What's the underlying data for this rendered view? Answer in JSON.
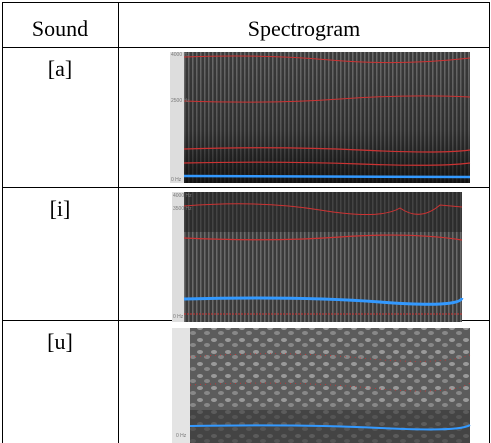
{
  "table": {
    "header": [
      "Sound",
      "Spectrogram"
    ],
    "rows": [
      {
        "sound": "[a]",
        "axis": [
          "4000 Hz",
          "2500 Hz",
          "0 Hz"
        ]
      },
      {
        "sound": "[i]",
        "axis": [
          "4000 Hz",
          "3500 Hz",
          "0 Hz"
        ]
      },
      {
        "sound": "[u]",
        "axis": [
          "0 Hz"
        ]
      }
    ]
  }
}
